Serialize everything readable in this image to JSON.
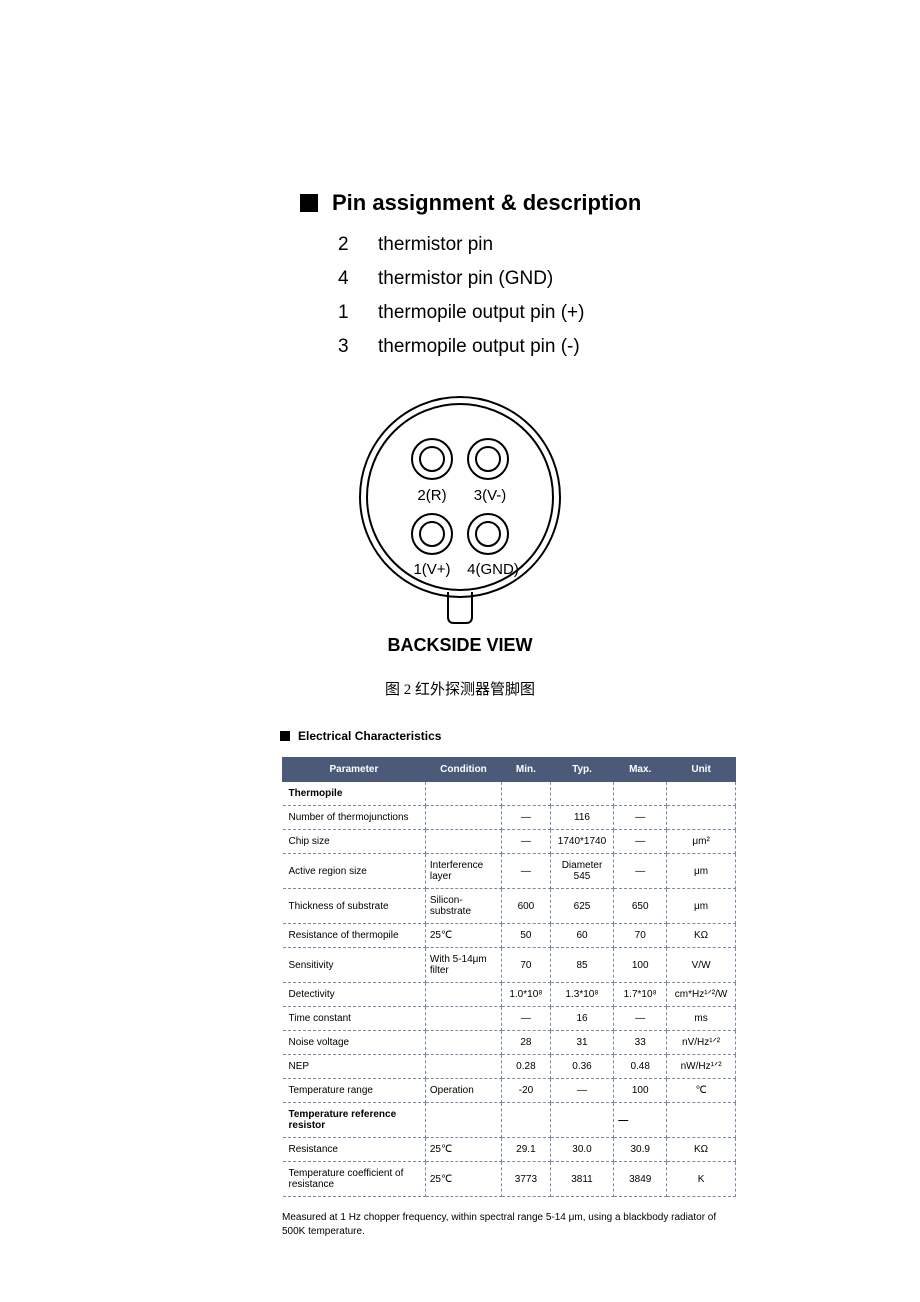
{
  "heading": {
    "title": "Pin assignment & description"
  },
  "pins": [
    {
      "num": "2",
      "desc": "thermistor pin"
    },
    {
      "num": "4",
      "desc": "thermistor pin (GND)"
    },
    {
      "num": "1",
      "desc": "thermopile output pin (+)"
    },
    {
      "num": "3",
      "desc": "thermopile output pin (-)"
    }
  ],
  "diagram": {
    "labels": {
      "topLeft": "2(R)",
      "topRight": "3(V-)",
      "bottomLeft": "1(V+)",
      "bottomRight": "4(GND)"
    },
    "caption": "BACKSIDE VIEW"
  },
  "figureCaption": "图 2 红外探测器管脚图",
  "tableSection": {
    "heading": "Electrical Characteristics",
    "columns": [
      "Parameter",
      "Condition",
      "Min.",
      "Typ.",
      "Max.",
      "Unit"
    ],
    "rows": [
      {
        "section": true,
        "param": "Thermopile",
        "cond": "",
        "min": "",
        "typ": "",
        "max": "",
        "unit": ""
      },
      {
        "param": "Number of thermojunctions",
        "cond": "",
        "min": "—",
        "typ": "116",
        "max": "—",
        "unit": ""
      },
      {
        "param": "Chip size",
        "cond": "",
        "min": "—",
        "typ": "1740*1740",
        "max": "—",
        "unit": "μm²"
      },
      {
        "param": "Active region size",
        "cond": "Interference layer",
        "min": "—",
        "typ": "Diameter 545",
        "max": "—",
        "unit": "μm"
      },
      {
        "param": "Thickness of substrate",
        "cond": "Silicon-substrate",
        "min": "600",
        "typ": "625",
        "max": "650",
        "unit": "μm"
      },
      {
        "param": "Resistance of thermopile",
        "cond": "25℃",
        "min": "50",
        "typ": "60",
        "max": "70",
        "unit": "KΩ"
      },
      {
        "param": "Sensitivity",
        "cond": "With 5-14μm filter",
        "min": "70",
        "typ": "85",
        "max": "100",
        "unit": "V/W"
      },
      {
        "param": "Detectivity",
        "cond": "",
        "min": "1.0*10⁸",
        "typ": "1.3*10⁸",
        "max": "1.7*10⁸",
        "unit": "cm*Hz¹ᐟ²/W"
      },
      {
        "param": "Time constant",
        "cond": "",
        "min": "—",
        "typ": "16",
        "max": "—",
        "unit": "ms"
      },
      {
        "param": "Noise voltage",
        "cond": "",
        "min": "28",
        "typ": "31",
        "max": "33",
        "unit": "nV/Hz¹ᐟ²"
      },
      {
        "param": "NEP",
        "cond": "",
        "min": "0.28",
        "typ": "0.36",
        "max": "0.48",
        "unit": "nW/Hz¹ᐟ²"
      },
      {
        "param": "Temperature range",
        "cond": "Operation",
        "min": "-20",
        "typ": "—",
        "max": "100",
        "unit": "℃"
      },
      {
        "section": true,
        "param": "Temperature reference resistor",
        "cond": "",
        "min": "",
        "typ": "",
        "max": "—",
        "unit": ""
      },
      {
        "param": "Resistance",
        "cond": "25℃",
        "min": "29.1",
        "typ": "30.0",
        "max": "30.9",
        "unit": "KΩ"
      },
      {
        "param": "Temperature coefficient of resistance",
        "cond": "25℃",
        "min": "3773",
        "typ": "3811",
        "max": "3849",
        "unit": "K"
      }
    ]
  },
  "footnote": "Measured at 1 Hz chopper frequency, within spectral range 5-14 μm, using a blackbody radiator of 500K temperature.",
  "colors": {
    "tableHeaderBg": "#4a5a78",
    "tableHeaderText": "#ffffff",
    "tableBorder": "#7a8aa8",
    "text": "#000000",
    "background": "#ffffff"
  }
}
